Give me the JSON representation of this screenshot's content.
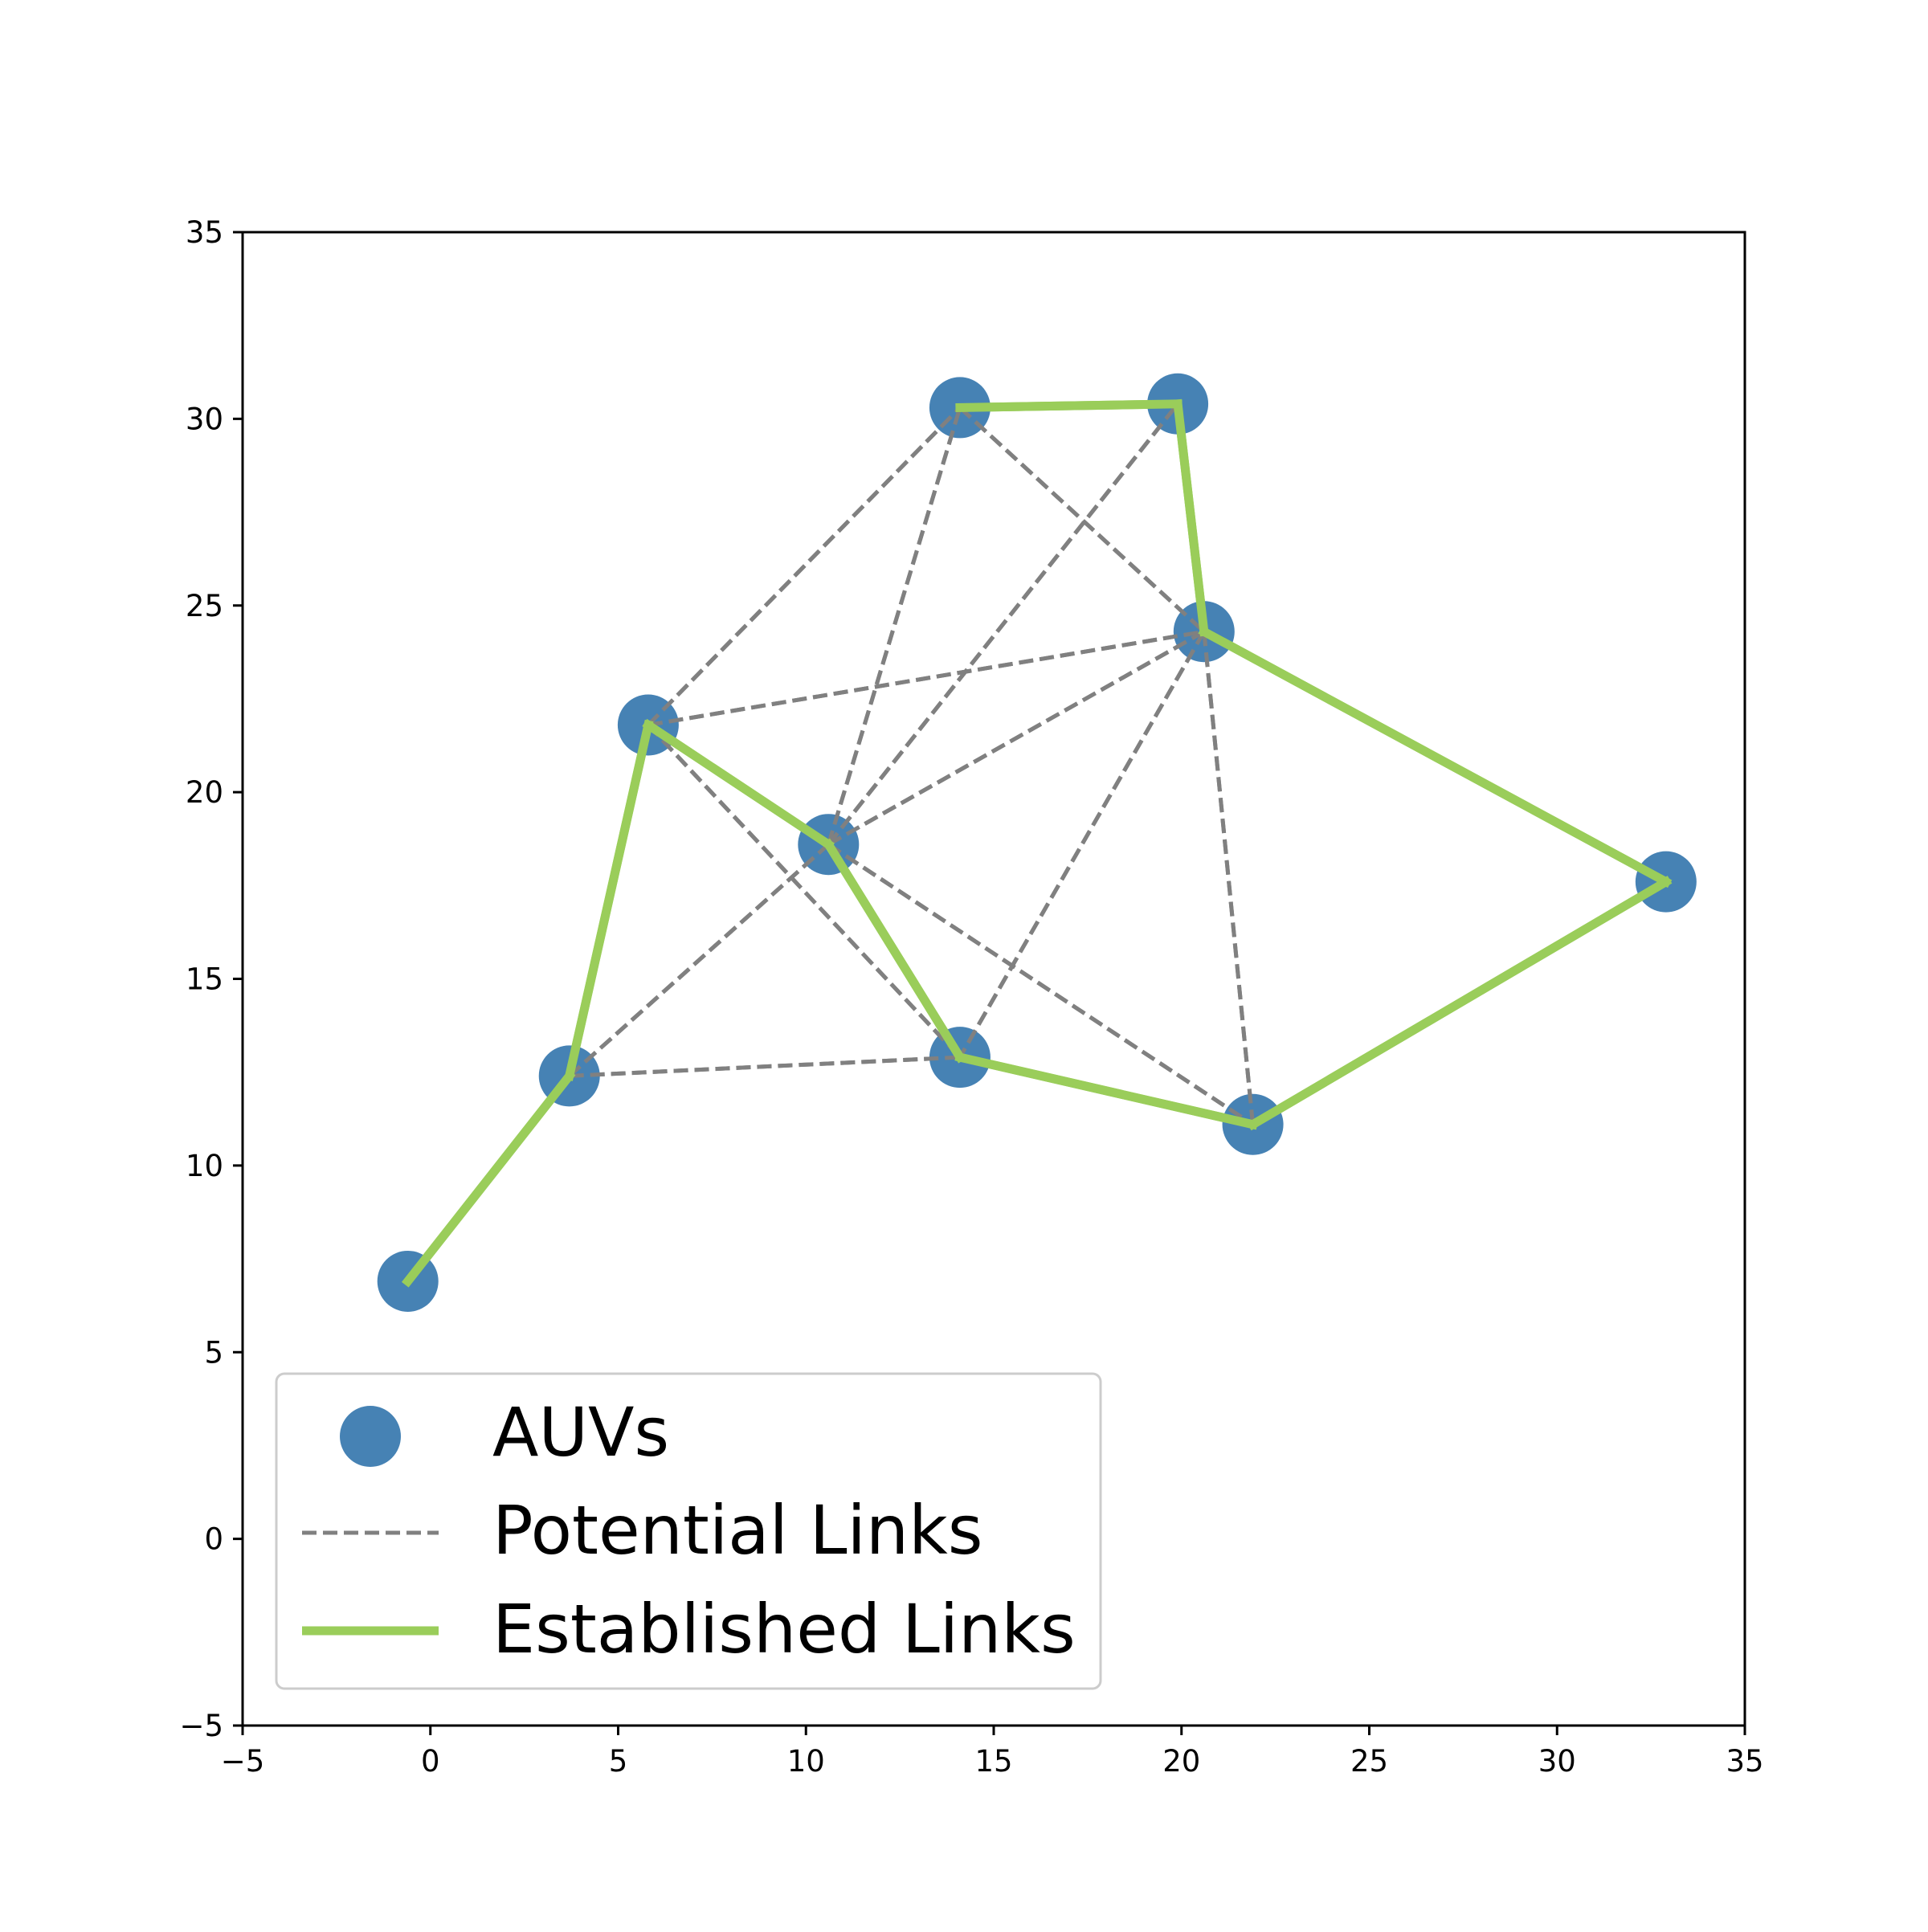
{
  "chart_data": {
    "type": "scatter",
    "title": "",
    "xlabel": "",
    "ylabel": "",
    "xlim": [
      -5,
      35
    ],
    "ylim": [
      -5,
      35
    ],
    "xticks": [
      -5,
      0,
      5,
      10,
      15,
      20,
      25,
      30,
      35
    ],
    "yticks": [
      -5,
      0,
      5,
      10,
      15,
      20,
      25,
      30,
      35
    ],
    "xtick_labels": [
      "−5",
      "0",
      "5",
      "10",
      "15",
      "20",
      "25",
      "30",
      "35"
    ],
    "ytick_labels": [
      "−5",
      "0",
      "5",
      "10",
      "15",
      "20",
      "25",
      "30",
      "35"
    ],
    "grid": false,
    "legend_position": "lower-left",
    "nodes": [
      {
        "x": -0.6,
        "y": 6.9
      },
      {
        "x": 3.7,
        "y": 12.4
      },
      {
        "x": 5.8,
        "y": 21.8
      },
      {
        "x": 10.6,
        "y": 18.6
      },
      {
        "x": 14.1,
        "y": 12.9
      },
      {
        "x": 14.1,
        "y": 30.3
      },
      {
        "x": 19.9,
        "y": 30.4
      },
      {
        "x": 20.6,
        "y": 24.3
      },
      {
        "x": 21.9,
        "y": 11.1
      },
      {
        "x": 32.9,
        "y": 17.6
      }
    ],
    "potential_links": [
      [
        5.8,
        21.8,
        14.1,
        30.3
      ],
      [
        5.8,
        21.8,
        20.6,
        24.3
      ],
      [
        5.8,
        21.8,
        14.1,
        12.9
      ],
      [
        3.7,
        12.4,
        14.1,
        12.9
      ],
      [
        3.7,
        12.4,
        10.6,
        18.6
      ],
      [
        10.6,
        18.6,
        14.1,
        30.3
      ],
      [
        10.6,
        18.6,
        19.9,
        30.4
      ],
      [
        10.6,
        18.6,
        20.6,
        24.3
      ],
      [
        10.6,
        18.6,
        21.9,
        11.1
      ],
      [
        14.1,
        30.3,
        20.6,
        24.3
      ],
      [
        20.6,
        24.3,
        14.1,
        12.9
      ],
      [
        20.6,
        24.3,
        21.9,
        11.1
      ]
    ],
    "established_links": [
      [
        -0.6,
        6.9,
        3.7,
        12.4
      ],
      [
        3.7,
        12.4,
        5.8,
        21.8
      ],
      [
        5.8,
        21.8,
        10.6,
        18.6
      ],
      [
        10.6,
        18.6,
        14.1,
        12.9
      ],
      [
        14.1,
        12.9,
        21.9,
        11.1
      ],
      [
        21.9,
        11.1,
        32.9,
        17.6
      ],
      [
        32.9,
        17.6,
        20.6,
        24.3
      ],
      [
        20.6,
        24.3,
        19.9,
        30.4
      ],
      [
        19.9,
        30.4,
        14.1,
        30.3
      ]
    ],
    "series": [
      {
        "name": "AUVs",
        "color": "#4682b4",
        "marker": "circle"
      },
      {
        "name": "Potential Links",
        "color": "#808080",
        "linestyle": "dashed"
      },
      {
        "name": "Established Links",
        "color": "#9acd5a",
        "linestyle": "solid"
      }
    ]
  }
}
